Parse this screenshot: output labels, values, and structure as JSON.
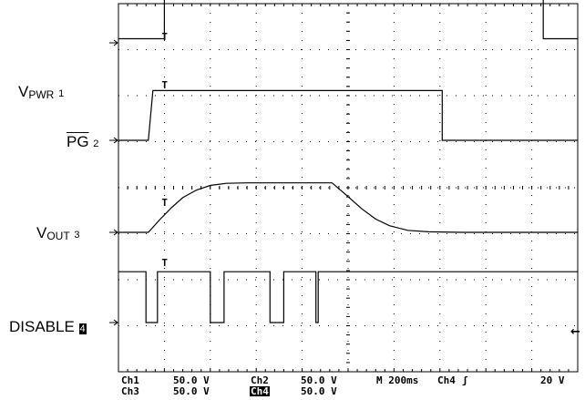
{
  "chart_data": {
    "type": "line",
    "title": "",
    "time_unit": "ms",
    "x_range": [
      0,
      2000
    ],
    "grid": true,
    "channels": [
      {
        "id": "ch1",
        "name": "VPWR",
        "main": "V",
        "sub": "PWR",
        "marker": "1",
        "points": [
          [
            0,
            0.9
          ],
          [
            200,
            0.9
          ],
          [
            200,
            10.9
          ],
          [
            1850,
            10.9
          ],
          [
            1850,
            0.9
          ],
          [
            2000,
            0.9
          ]
        ],
        "note": "ch1 baseline upper trace"
      },
      {
        "id": "ch2",
        "name": "PG",
        "main": "PG",
        "marker": "2",
        "points": [
          [
            0,
            0
          ],
          [
            130,
            0
          ],
          [
            150,
            10.5
          ],
          [
            1270,
            10.5
          ],
          [
            1330,
            10.5
          ],
          [
            1410,
            10.5
          ],
          [
            1410,
            0
          ],
          [
            2000,
            0
          ]
        ]
      },
      {
        "id": "ch3",
        "name": "VOUT",
        "main": "V",
        "sub": "OUT",
        "marker": "3",
        "points": [
          [
            0,
            0
          ],
          [
            130,
            0
          ],
          [
            180,
            2.5
          ],
          [
            230,
            4.8
          ],
          [
            280,
            6.8
          ],
          [
            340,
            8.3
          ],
          [
            400,
            9.2
          ],
          [
            470,
            9.6
          ],
          [
            560,
            9.7
          ],
          [
            860,
            9.7
          ],
          [
            930,
            9.7
          ],
          [
            1000,
            7
          ],
          [
            1060,
            4.6
          ],
          [
            1120,
            2.6
          ],
          [
            1180,
            1.3
          ],
          [
            1260,
            0.4
          ],
          [
            1350,
            0.1
          ],
          [
            1500,
            0
          ],
          [
            2000,
            0
          ]
        ]
      },
      {
        "id": "ch4",
        "name": "DISABLE",
        "main": "DISABLE",
        "marker": "4",
        "points": [
          [
            0,
            6
          ],
          [
            120,
            6
          ],
          [
            120,
            0
          ],
          [
            170,
            0
          ],
          [
            170,
            6
          ],
          [
            400,
            6
          ],
          [
            400,
            0
          ],
          [
            460,
            0
          ],
          [
            460,
            6
          ],
          [
            660,
            6
          ],
          [
            660,
            0
          ],
          [
            720,
            0
          ],
          [
            720,
            6
          ],
          [
            860,
            6
          ],
          [
            860,
            0
          ],
          [
            870,
            0
          ],
          [
            870,
            6
          ],
          [
            2000,
            6
          ]
        ]
      }
    ],
    "readout": {
      "row1": [
        "Ch1",
        "50.0 V",
        "Ch2",
        "50.0 V",
        "M 200ms",
        "Ch4",
        "ʃ",
        "20 V"
      ],
      "row2": [
        "Ch3",
        "50.0 V",
        "Ch4",
        "50.0 V"
      ]
    },
    "trigger_marker": "T",
    "trigger_level_marker": "←"
  }
}
